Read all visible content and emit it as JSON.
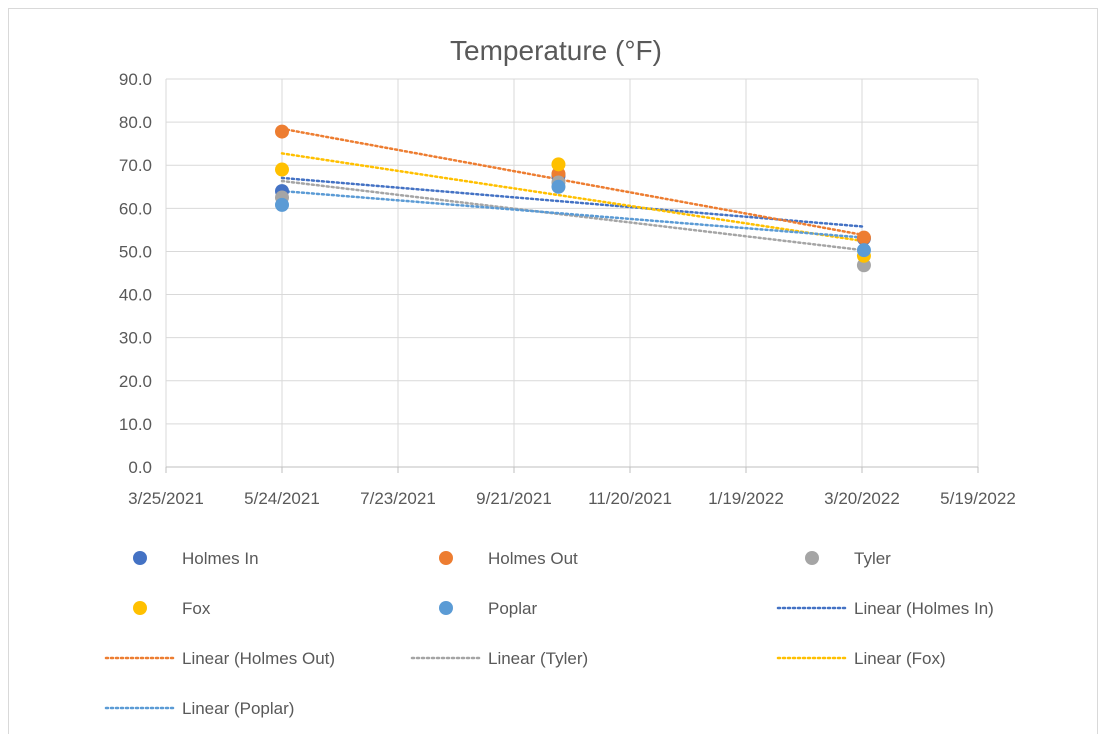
{
  "chart_data": {
    "type": "scatter",
    "title": "Temperature (°F)",
    "xlabel": "",
    "ylabel": "",
    "x_axis": {
      "type": "date",
      "min": "2021-03-25",
      "max": "2022-05-19",
      "tick_labels": [
        "3/25/2021",
        "5/24/2021",
        "7/23/2021",
        "9/21/2021",
        "11/20/2021",
        "1/19/2022",
        "3/20/2022",
        "5/19/2022"
      ],
      "tick_dates": [
        "2021-03-25",
        "2021-05-24",
        "2021-07-23",
        "2021-09-21",
        "2021-11-20",
        "2022-01-19",
        "2022-03-20",
        "2022-05-19"
      ]
    },
    "y_axis": {
      "min": 0,
      "max": 90,
      "tick_labels": [
        "0.0",
        "10.0",
        "20.0",
        "30.0",
        "40.0",
        "50.0",
        "60.0",
        "70.0",
        "80.0",
        "90.0"
      ],
      "tick_values": [
        0,
        10,
        20,
        30,
        40,
        50,
        60,
        70,
        80,
        90
      ]
    },
    "grid": true,
    "legend_position": "bottom",
    "x": [
      "2021-05-24",
      "2021-10-14",
      "2022-03-21"
    ],
    "series": [
      {
        "name": "Holmes In",
        "color": "#4472c4",
        "values": [
          64.0,
          67.5,
          53.0
        ]
      },
      {
        "name": "Holmes Out",
        "color": "#ed7d31",
        "values": [
          77.8,
          68.0,
          53.2
        ]
      },
      {
        "name": "Tyler",
        "color": "#a5a5a5",
        "values": [
          62.5,
          66.0,
          46.8
        ]
      },
      {
        "name": "Fox",
        "color": "#ffc000",
        "values": [
          69.0,
          70.2,
          49.0
        ]
      },
      {
        "name": "Poplar",
        "color": "#5b9bd5",
        "values": [
          60.8,
          65.0,
          50.3
        ]
      }
    ],
    "trendlines": [
      {
        "name": "Linear (Holmes In)",
        "series": "Holmes In",
        "color": "#4472c4"
      },
      {
        "name": "Linear (Holmes Out)",
        "series": "Holmes Out",
        "color": "#ed7d31"
      },
      {
        "name": "Linear (Tyler)",
        "series": "Tyler",
        "color": "#a5a5a5"
      },
      {
        "name": "Linear (Fox)",
        "series": "Fox",
        "color": "#ffc000"
      },
      {
        "name": "Linear (Poplar)",
        "series": "Poplar",
        "color": "#5b9bd5"
      }
    ]
  }
}
